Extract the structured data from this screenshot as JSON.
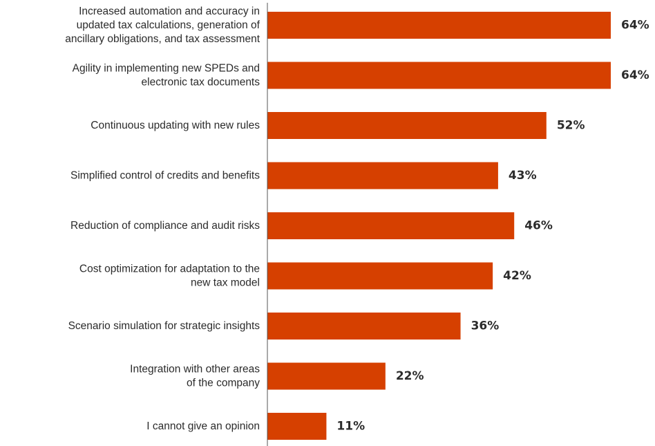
{
  "chart_data": {
    "type": "bar",
    "orientation": "horizontal",
    "categories": [
      [
        "Increased automation and accuracy in",
        "updated tax calculations, generation of",
        "ancillary obligations, and tax assessment"
      ],
      [
        "Agility in implementing new SPEDs and",
        "electronic tax documents"
      ],
      [
        "Continuous updating with new rules"
      ],
      [
        "Simplified control of credits and benefits"
      ],
      [
        "Reduction of compliance and audit risks"
      ],
      [
        "Cost optimization for adaptation to the",
        "new tax model"
      ],
      [
        "Scenario simulation for strategic insights"
      ],
      [
        "Integration with other areas",
        "of the company"
      ],
      [
        "I cannot give an opinion"
      ]
    ],
    "values": [
      64,
      64,
      52,
      43,
      46,
      42,
      36,
      22,
      11
    ],
    "value_labels": [
      "64%",
      "64%",
      "52%",
      "43%",
      "46%",
      "42%",
      "36%",
      "22%",
      "11%"
    ],
    "xlim": [
      0,
      64
    ],
    "bar_color": "#d64000",
    "axis_color": "#555555",
    "grid": false,
    "legend": "none"
  }
}
